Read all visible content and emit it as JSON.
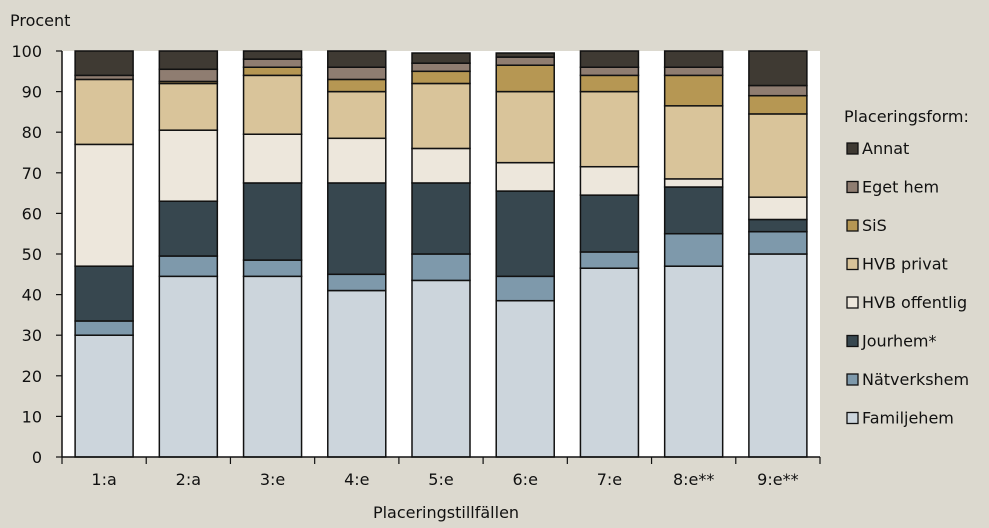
{
  "chart_data": {
    "type": "bar",
    "stacked": true,
    "ylabel": "Procent",
    "xlabel": "Placeringstillfällen",
    "ylim": [
      0,
      100
    ],
    "yticks": [
      0,
      10,
      20,
      30,
      40,
      50,
      60,
      70,
      80,
      90,
      100
    ],
    "grid": false,
    "legend_title": "Placeringsform:",
    "legend_position": "right",
    "categories": [
      "1:a",
      "2:a",
      "3:e",
      "4:e",
      "5:e",
      "6:e",
      "7:e",
      "8:e**",
      "9:e**"
    ],
    "series": [
      {
        "name": "Familjehem",
        "color": "#ccd5dc",
        "values": [
          30,
          44.5,
          44.5,
          41,
          43.5,
          38.5,
          46.5,
          47,
          50
        ]
      },
      {
        "name": "Nätverkshem",
        "color": "#7e99ab",
        "values": [
          3.5,
          5,
          4,
          4,
          6.5,
          6,
          4,
          8,
          5.5
        ]
      },
      {
        "name": "Jourhem*",
        "color": "#37474f",
        "values": [
          13.5,
          13.5,
          19,
          22.5,
          17.5,
          21,
          14,
          11.5,
          3
        ]
      },
      {
        "name": "HVB offentlig",
        "color": "#ede7dc",
        "values": [
          30,
          17.5,
          12,
          11,
          8.5,
          7,
          7,
          2,
          5.5
        ]
      },
      {
        "name": "HVB privat",
        "color": "#d9c49a",
        "values": [
          16,
          11.5,
          14.5,
          11.5,
          16,
          17.5,
          18.5,
          18,
          20.5
        ]
      },
      {
        "name": "SiS",
        "color": "#b69753",
        "values": [
          0,
          0.5,
          2,
          3,
          3,
          6.5,
          4,
          7.5,
          4.5
        ]
      },
      {
        "name": "Eget hem",
        "color": "#8f7d71",
        "values": [
          1,
          3,
          2,
          3,
          2,
          2,
          2,
          2,
          2.5
        ]
      },
      {
        "name": "Annat",
        "color": "#3f3a33",
        "values": [
          6,
          4.5,
          2,
          4,
          2.5,
          1,
          4,
          4,
          8.5
        ]
      }
    ]
  }
}
